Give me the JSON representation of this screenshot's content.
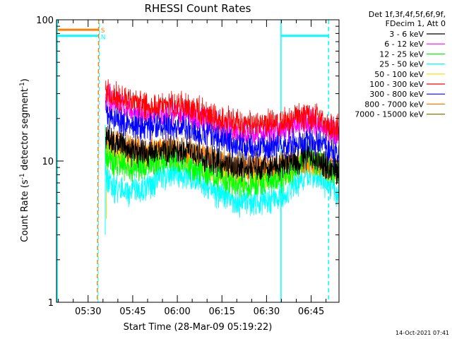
{
  "chart_data": {
    "type": "line",
    "title": "RHESSI Count Rates",
    "xlabel": "Start Time (28-Mar-09 05:19:22)",
    "ylabel_main": "Count Rate (s",
    "ylabel_sup": "-1",
    "ylabel_mid": " detector segment",
    "ylabel_sup2": "-1",
    "ylabel_end": ")",
    "y_scale": "log",
    "ylim": [
      1,
      100
    ],
    "xlim_minutes": [
      0,
      95
    ],
    "x_ticks": [
      {
        "label": "05:30",
        "minute": 10.633
      },
      {
        "label": "05:45",
        "minute": 25.633
      },
      {
        "label": "06:00",
        "minute": 40.633
      },
      {
        "label": "06:15",
        "minute": 55.633
      },
      {
        "label": "06:30",
        "minute": 70.633
      },
      {
        "label": "06:45",
        "minute": 85.633
      }
    ],
    "y_ticks": [
      {
        "label": "1",
        "value": 1
      },
      {
        "label": "10",
        "value": 10
      },
      {
        "label": "100",
        "value": 100
      }
    ],
    "legend": {
      "header": [
        "Det 1f,3f,4f,5f,6f,9f,",
        "FDecim 1, Att 0"
      ],
      "placement": "right"
    },
    "flags": {
      "S": {
        "label": "S",
        "color": "#ff8000"
      },
      "N": {
        "label": "N",
        "color": "#00ffff"
      }
    },
    "series": [
      {
        "name": "3 - 6 keV",
        "color": "#000000",
        "profile": [
          [
            16.5,
            15.5
          ],
          [
            19,
            14
          ],
          [
            24,
            12
          ],
          [
            30,
            11.2
          ],
          [
            38,
            12
          ],
          [
            44,
            11.8
          ],
          [
            52,
            10
          ],
          [
            60,
            9.3
          ],
          [
            66,
            9
          ],
          [
            72,
            9.2
          ],
          [
            78,
            9.5
          ],
          [
            84,
            10.8
          ],
          [
            88,
            10.2
          ],
          [
            92,
            9
          ],
          [
            95,
            8.7
          ]
        ]
      },
      {
        "name": "6 - 12 keV",
        "color": "#ff00ff",
        "profile": [
          [
            16.5,
            28
          ],
          [
            19,
            26
          ],
          [
            24,
            24
          ],
          [
            30,
            21
          ],
          [
            38,
            22
          ],
          [
            44,
            21
          ],
          [
            52,
            18.5
          ],
          [
            60,
            16
          ],
          [
            66,
            15.5
          ],
          [
            72,
            16
          ],
          [
            78,
            17
          ],
          [
            84,
            19
          ],
          [
            88,
            18
          ],
          [
            92,
            16
          ],
          [
            95,
            15.5
          ]
        ]
      },
      {
        "name": "12 - 25 keV",
        "color": "#00ff00",
        "profile": [
          [
            16.5,
            11
          ],
          [
            19,
            10
          ],
          [
            24,
            9
          ],
          [
            30,
            9.4
          ],
          [
            38,
            10.4
          ],
          [
            44,
            9.5
          ],
          [
            52,
            8
          ],
          [
            60,
            7
          ],
          [
            66,
            6.8
          ],
          [
            72,
            7.2
          ],
          [
            78,
            8
          ],
          [
            84,
            10.5
          ],
          [
            88,
            10
          ],
          [
            92,
            8.5
          ],
          [
            95,
            8
          ]
        ]
      },
      {
        "name": "25 - 50 keV",
        "color": "#00ffff",
        "profile": [
          [
            16.5,
            7.5
          ],
          [
            19,
            6.5
          ],
          [
            24,
            6
          ],
          [
            30,
            6.5
          ],
          [
            38,
            8.2
          ],
          [
            44,
            7.8
          ],
          [
            52,
            6.2
          ],
          [
            60,
            5.2
          ],
          [
            66,
            5
          ],
          [
            72,
            5.3
          ],
          [
            78,
            6
          ],
          [
            84,
            8
          ],
          [
            88,
            7.8
          ],
          [
            92,
            6.5
          ],
          [
            95,
            6
          ]
        ]
      },
      {
        "name": "50 - 100 keV",
        "color": "#ffd700",
        "profile": [
          [
            16.5,
            13
          ],
          [
            19,
            11.5
          ],
          [
            24,
            10.5
          ],
          [
            30,
            10.6
          ],
          [
            38,
            11.5
          ],
          [
            44,
            10.8
          ],
          [
            52,
            9
          ],
          [
            60,
            8.2
          ],
          [
            66,
            8
          ],
          [
            72,
            8.2
          ],
          [
            78,
            8.8
          ],
          [
            84,
            10
          ],
          [
            88,
            9.6
          ],
          [
            92,
            8.4
          ],
          [
            95,
            8
          ]
        ]
      },
      {
        "name": "100 - 300 keV",
        "color": "#ff0000",
        "profile": [
          [
            16.5,
            32
          ],
          [
            19,
            30
          ],
          [
            24,
            27
          ],
          [
            30,
            24
          ],
          [
            38,
            25
          ],
          [
            44,
            24
          ],
          [
            52,
            21
          ],
          [
            60,
            18.5
          ],
          [
            66,
            17.8
          ],
          [
            72,
            18.5
          ],
          [
            78,
            19.5
          ],
          [
            84,
            21
          ],
          [
            88,
            20
          ],
          [
            92,
            17.5
          ],
          [
            95,
            17
          ]
        ]
      },
      {
        "name": "300 - 800 keV",
        "color": "#0000ff",
        "profile": [
          [
            16.5,
            22
          ],
          [
            19,
            20
          ],
          [
            24,
            18.3
          ],
          [
            30,
            17
          ],
          [
            38,
            17.5
          ],
          [
            44,
            17
          ],
          [
            52,
            15
          ],
          [
            60,
            13
          ],
          [
            66,
            12.5
          ],
          [
            72,
            12.6
          ],
          [
            78,
            13
          ],
          [
            84,
            14
          ],
          [
            88,
            13.5
          ],
          [
            92,
            12
          ],
          [
            95,
            11
          ]
        ]
      },
      {
        "name": "800 - 7000 keV",
        "color": "#ff8000",
        "profile": [
          [
            16.5,
            15
          ],
          [
            19,
            14.5
          ],
          [
            24,
            12.8
          ],
          [
            30,
            12
          ],
          [
            38,
            12.5
          ],
          [
            44,
            12
          ],
          [
            52,
            10.5
          ],
          [
            60,
            9.2
          ],
          [
            66,
            9
          ],
          [
            72,
            9
          ],
          [
            78,
            9.4
          ],
          [
            84,
            10
          ],
          [
            88,
            9.8
          ],
          [
            92,
            8.8
          ],
          [
            95,
            8.3
          ]
        ]
      },
      {
        "name": "7000 - 15000 keV",
        "color": "#808000",
        "profile": []
      }
    ],
    "pre_attenuator_levels": {
      "orange": 85,
      "cyan": 77
    },
    "markers_minutes": {
      "cyan_dash_start": 14.2,
      "cyan_solid": 75.5,
      "cyan_dash_end": 91.5
    }
  },
  "footer": {
    "timestamp": "14-Oct-2021 07:41"
  }
}
